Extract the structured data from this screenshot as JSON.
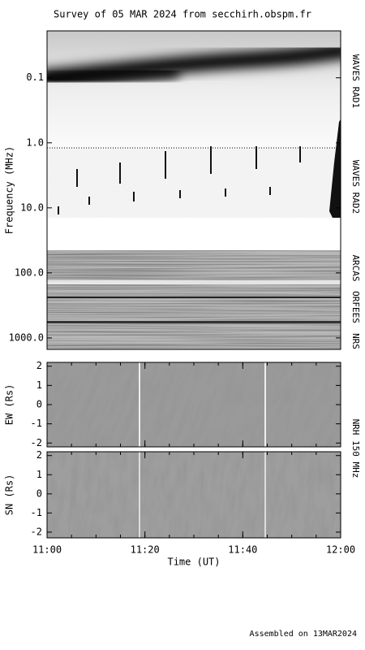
{
  "title": "Survey of 05 MAR 2024 from secchirh.obspm.fr",
  "footer": "Assembled on 13MAR2024",
  "time_axis": {
    "label": "Time (UT)",
    "xlim": [
      "11:00",
      "12:00"
    ],
    "xticks": [
      "11:00",
      "11:20",
      "11:40",
      "12:00"
    ]
  },
  "spectrum": {
    "ylabel": "Frequency (MHz)",
    "log_scale": true,
    "ylim": [
      0.019,
      1500
    ],
    "yticks": [
      0.1,
      {
        "value": 1,
        "label": "1.0"
      },
      {
        "value": 10,
        "label": "10.0"
      },
      {
        "value": 100,
        "label": "100.0"
      },
      {
        "value": 1000,
        "label": "1000.0"
      }
    ],
    "instruments": [
      "WAVES RAD1",
      "WAVES RAD2",
      "ARCAS",
      "ORFEES",
      "NRS"
    ]
  },
  "nrh": {
    "label": "NRH 150 MHz",
    "panels": [
      {
        "ylabel": "EW (Rs)",
        "ylim": [
          -2.2,
          2.2
        ],
        "yticks": [
          -2,
          -1,
          0,
          1,
          2
        ]
      },
      {
        "ylabel": "SN (Rs)",
        "ylim": [
          -2.3,
          2.2
        ],
        "yticks": [
          -2,
          -1,
          0,
          1,
          2
        ]
      }
    ]
  }
}
